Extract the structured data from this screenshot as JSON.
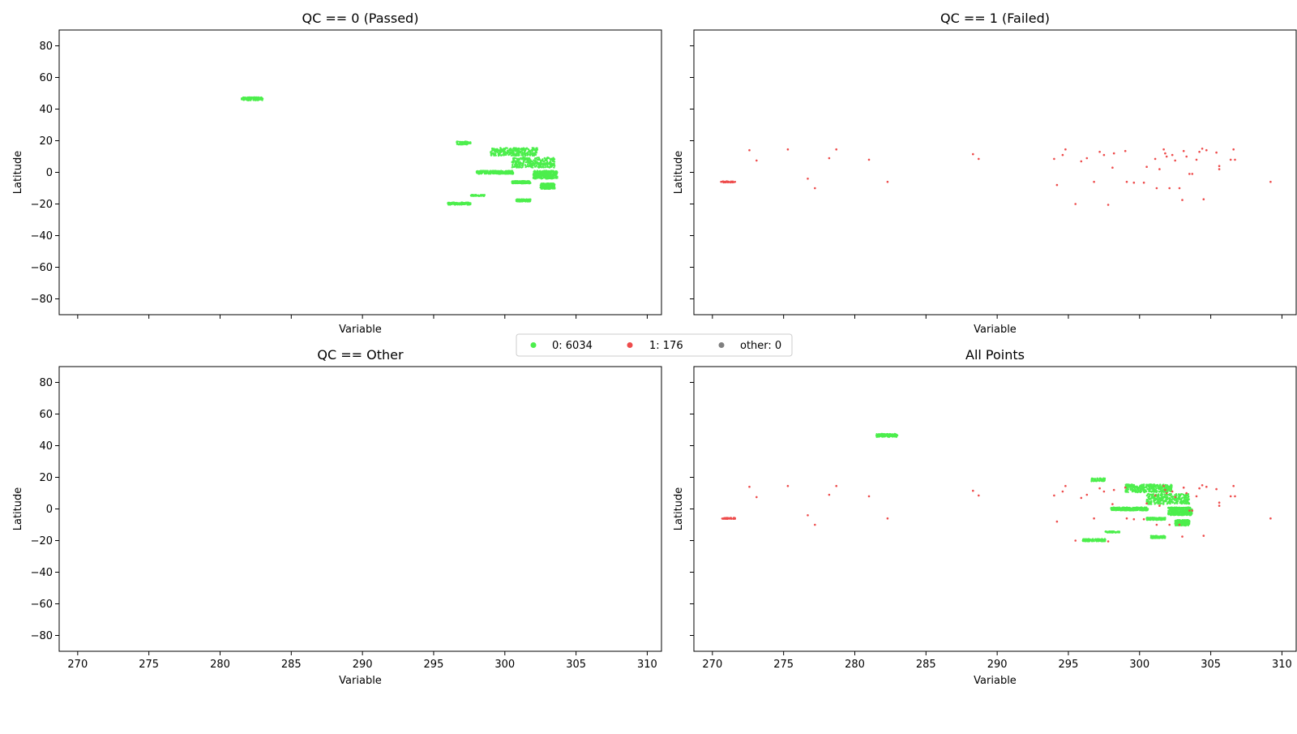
{
  "chart_data": [
    {
      "type": "scatter",
      "title": "QC == 0 (Passed)",
      "xlabel": "Variable",
      "ylabel": "Latitude",
      "xlim": [
        268.7,
        311.0
      ],
      "ylim": [
        -90,
        90
      ],
      "xticks": [
        270,
        275,
        280,
        285,
        290,
        295,
        300,
        305,
        310
      ],
      "yticks": [
        80,
        60,
        40,
        20,
        0,
        -20,
        -40,
        -60,
        -80
      ],
      "show_xticklabels": false,
      "series": [
        {
          "name": "0",
          "color": "#4cee4c",
          "clusters": [
            {
              "x": [
                281.5,
                283.0
              ],
              "y": [
                45.5,
                47.5
              ],
              "n": 120
            },
            {
              "x": [
                296.6,
                297.6
              ],
              "y": [
                17.5,
                19.5
              ],
              "n": 60
            },
            {
              "x": [
                299.0,
                302.3
              ],
              "y": [
                10.5,
                15.5
              ],
              "n": 800
            },
            {
              "x": [
                300.5,
                303.5
              ],
              "y": [
                3.0,
                9.5
              ],
              "n": 900
            },
            {
              "x": [
                302.0,
                303.7
              ],
              "y": [
                -4.0,
                1.0
              ],
              "n": 700
            },
            {
              "x": [
                298.0,
                300.6
              ],
              "y": [
                -1.0,
                1.0
              ],
              "n": 400
            },
            {
              "x": [
                300.5,
                301.8
              ],
              "y": [
                -7.0,
                -5.5
              ],
              "n": 200
            },
            {
              "x": [
                302.5,
                303.5
              ],
              "y": [
                -10.5,
                -7.0
              ],
              "n": 250
            },
            {
              "x": [
                297.6,
                298.6
              ],
              "y": [
                -15.0,
                -14.2
              ],
              "n": 60
            },
            {
              "x": [
                296.0,
                297.6
              ],
              "y": [
                -20.5,
                -19.0
              ],
              "n": 120
            },
            {
              "x": [
                300.8,
                301.8
              ],
              "y": [
                -18.5,
                -17.0
              ],
              "n": 120
            }
          ]
        }
      ]
    },
    {
      "type": "scatter",
      "title": "QC == 1 (Failed)",
      "xlabel": "Variable",
      "ylabel": "Latitude",
      "xlim": [
        268.7,
        311.0
      ],
      "ylim": [
        -90,
        90
      ],
      "xticks": [
        270,
        275,
        280,
        285,
        290,
        295,
        300,
        305,
        310
      ],
      "yticks": [
        80,
        60,
        40,
        20,
        0,
        -20,
        -40,
        -60,
        -80
      ],
      "show_xticklabels": false,
      "series": [
        {
          "name": "1",
          "color": "#ee4c4c",
          "clusters": [
            {
              "x": [
                270.6,
                271.6
              ],
              "y": [
                -6.4,
                -5.6
              ],
              "n": 40
            }
          ],
          "points": [
            [
              272.6,
              14
            ],
            [
              273.1,
              7.5
            ],
            [
              275.3,
              14.5
            ],
            [
              276.7,
              -4
            ],
            [
              277.2,
              -10
            ],
            [
              278.2,
              9
            ],
            [
              278.7,
              14.5
            ],
            [
              281.0,
              8
            ],
            [
              282.3,
              -6
            ],
            [
              288.3,
              11.5
            ],
            [
              288.7,
              8.5
            ],
            [
              294.0,
              8.5
            ],
            [
              294.2,
              -8
            ],
            [
              294.6,
              11
            ],
            [
              294.8,
              14.5
            ],
            [
              295.5,
              -20
            ],
            [
              295.9,
              7
            ],
            [
              296.3,
              9
            ],
            [
              296.8,
              -6
            ],
            [
              297.2,
              13
            ],
            [
              297.5,
              11
            ],
            [
              297.8,
              -20.5
            ],
            [
              298.1,
              3
            ],
            [
              298.2,
              12
            ],
            [
              299.0,
              13.5
            ],
            [
              299.1,
              -6
            ],
            [
              299.6,
              -6.5
            ],
            [
              300.3,
              -6.5
            ],
            [
              300.5,
              3.5
            ],
            [
              301.1,
              8.5
            ],
            [
              301.2,
              -10
            ],
            [
              301.4,
              2
            ],
            [
              301.7,
              14.5
            ],
            [
              301.8,
              12
            ],
            [
              301.9,
              10
            ],
            [
              302.1,
              -10
            ],
            [
              302.3,
              11
            ],
            [
              302.5,
              7.5
            ],
            [
              302.8,
              -10
            ],
            [
              303.0,
              -17.5
            ],
            [
              303.1,
              13.5
            ],
            [
              303.3,
              10
            ],
            [
              303.5,
              -1
            ],
            [
              303.7,
              -1
            ],
            [
              304.0,
              8
            ],
            [
              304.2,
              13
            ],
            [
              304.4,
              15
            ],
            [
              304.5,
              -17
            ],
            [
              304.7,
              14
            ],
            [
              305.4,
              12.5
            ],
            [
              305.6,
              4
            ],
            [
              305.6,
              2
            ],
            [
              306.4,
              8
            ],
            [
              306.6,
              14.5
            ],
            [
              306.7,
              8
            ],
            [
              309.2,
              -6
            ]
          ]
        }
      ]
    },
    {
      "type": "scatter",
      "title": "QC == Other",
      "xlabel": "Variable",
      "ylabel": "Latitude",
      "xlim": [
        268.7,
        311.0
      ],
      "ylim": [
        -90,
        90
      ],
      "xticks": [
        270,
        275,
        280,
        285,
        290,
        295,
        300,
        305,
        310
      ],
      "yticks": [
        80,
        60,
        40,
        20,
        0,
        -20,
        -40,
        -60,
        -80
      ],
      "show_xticklabels": true,
      "series": []
    },
    {
      "type": "scatter",
      "title": "All Points",
      "xlabel": "Variable",
      "ylabel": "Latitude",
      "xlim": [
        268.7,
        311.0
      ],
      "ylim": [
        -90,
        90
      ],
      "xticks": [
        270,
        275,
        280,
        285,
        290,
        295,
        300,
        305,
        310
      ],
      "yticks": [
        80,
        60,
        40,
        20,
        0,
        -20,
        -40,
        -60,
        -80
      ],
      "show_xticklabels": true,
      "series": [
        {
          "name": "0",
          "color": "#4cee4c",
          "ref": "0"
        },
        {
          "name": "1",
          "color": "#ee4c4c",
          "ref": "1"
        }
      ]
    }
  ],
  "legend": {
    "placement": "center",
    "entries": [
      {
        "label": "0: 6034",
        "color": "#4cee4c"
      },
      {
        "label": "1: 176",
        "color": "#ee4c4c"
      },
      {
        "label": "other: 0",
        "color": "#7f7f7f"
      }
    ]
  }
}
